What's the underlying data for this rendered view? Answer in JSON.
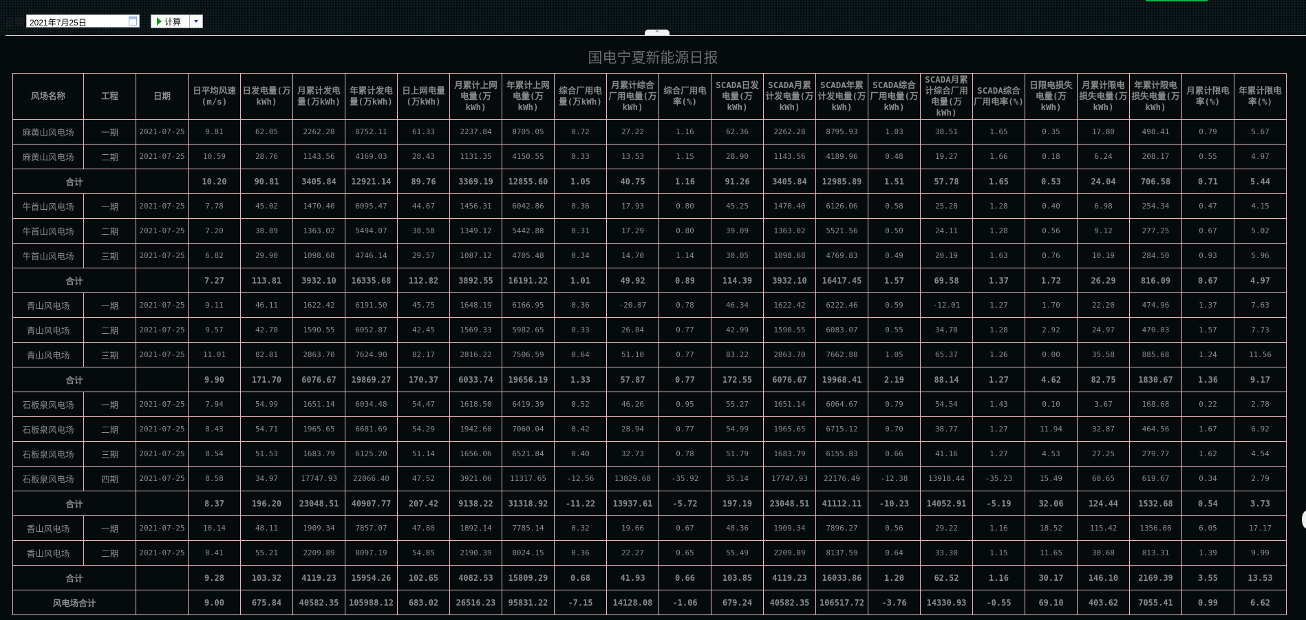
{
  "toolbar": {
    "date_label": "日期",
    "date_value": "2021年7月25日",
    "calc_label": "计算",
    "collapse_glyph": "^"
  },
  "title": "国电宁夏新能源日报",
  "colors": {
    "background": "#050b0d",
    "border": "#e4b9bb",
    "text": "#8a8a8a",
    "accent_strip": "#0fb44a"
  },
  "columns": [
    "风场名称",
    "工程",
    "日期",
    "日平均风速(m/s)",
    "日发电量(万kWh)",
    "月累计发电量(万kWh)",
    "年累计发电量(万kWh)",
    "日上网电量(万kWh)",
    "月累计上网电量(万kWh)",
    "年累计上网电量(万kWh)",
    "综合厂用电量(万kWh)",
    "月累计综合厂用电量(万kWh)",
    "综合厂用电率(%)",
    "SCADA日发电量(万kWh)",
    "SCADA月累计发电量(万kWh)",
    "SCADA年累计发电量(万kWh)",
    "SCADA综合厂用电量(万kWh)",
    "SCADA月累计综合厂用电量(万kWh)",
    "SCADA综合厂用电率(%)",
    "日限电损失电量(万kWh)",
    "月累计限电损失电量(万kWh)",
    "年累计限电损失电量(万kWh)",
    "月累计限电率(%)",
    "年累计限电率(%)"
  ],
  "rows": [
    {
      "type": "detail",
      "name": "麻黄山风电场",
      "phase": "一期",
      "date": "2021-07-25",
      "values": [
        "9.81",
        "62.05",
        "2262.28",
        "8752.11",
        "61.33",
        "2237.84",
        "8705.05",
        "0.72",
        "27.22",
        "1.16",
        "62.36",
        "2262.28",
        "8795.93",
        "1.03",
        "38.51",
        "1.65",
        "0.35",
        "17.80",
        "498.41",
        "0.79",
        "5.67"
      ]
    },
    {
      "type": "detail",
      "name": "麻黄山风电场",
      "phase": "二期",
      "date": "2021-07-25",
      "values": [
        "10.59",
        "28.76",
        "1143.56",
        "4169.03",
        "28.43",
        "1131.35",
        "4150.55",
        "0.33",
        "13.53",
        "1.15",
        "28.90",
        "1143.56",
        "4189.96",
        "0.48",
        "19.27",
        "1.66",
        "0.18",
        "6.24",
        "208.17",
        "0.55",
        "4.97"
      ]
    },
    {
      "type": "total",
      "name": "合计",
      "date": "",
      "values": [
        "10.20",
        "90.81",
        "3405.84",
        "12921.14",
        "89.76",
        "3369.19",
        "12855.60",
        "1.05",
        "40.75",
        "1.16",
        "91.26",
        "3405.84",
        "12985.89",
        "1.51",
        "57.78",
        "1.65",
        "0.53",
        "24.04",
        "706.58",
        "0.71",
        "5.44"
      ]
    },
    {
      "type": "detail",
      "name": "牛首山风电场",
      "phase": "一期",
      "date": "2021-07-25",
      "values": [
        "7.78",
        "45.02",
        "1470.40",
        "6095.47",
        "44.67",
        "1456.31",
        "6042.86",
        "0.36",
        "17.93",
        "0.80",
        "45.25",
        "1470.40",
        "6126.06",
        "0.58",
        "25.28",
        "1.28",
        "0.40",
        "6.98",
        "254.34",
        "0.47",
        "4.15"
      ]
    },
    {
      "type": "detail",
      "name": "牛首山风电场",
      "phase": "二期",
      "date": "2021-07-25",
      "values": [
        "7.20",
        "38.89",
        "1363.02",
        "5494.07",
        "38.58",
        "1349.12",
        "5442.88",
        "0.31",
        "17.29",
        "0.80",
        "39.09",
        "1363.02",
        "5521.56",
        "0.50",
        "24.11",
        "1.28",
        "0.56",
        "9.12",
        "277.25",
        "0.67",
        "5.02"
      ]
    },
    {
      "type": "detail",
      "name": "牛首山风电场",
      "phase": "三期",
      "date": "2021-07-25",
      "values": [
        "6.82",
        "29.90",
        "1098.68",
        "4746.14",
        "29.57",
        "1087.12",
        "4705.48",
        "0.34",
        "14.70",
        "1.14",
        "30.05",
        "1098.68",
        "4769.83",
        "0.49",
        "20.19",
        "1.63",
        "0.76",
        "10.19",
        "284.50",
        "0.93",
        "5.96"
      ]
    },
    {
      "type": "total",
      "name": "合计",
      "date": "",
      "values": [
        "7.27",
        "113.81",
        "3932.10",
        "16335.68",
        "112.82",
        "3892.55",
        "16191.22",
        "1.01",
        "49.92",
        "0.89",
        "114.39",
        "3932.10",
        "16417.45",
        "1.57",
        "69.58",
        "1.37",
        "1.72",
        "26.29",
        "816.09",
        "0.67",
        "4.97"
      ]
    },
    {
      "type": "detail",
      "name": "青山风电场",
      "phase": "一期",
      "date": "2021-07-25",
      "values": [
        "9.11",
        "46.11",
        "1622.42",
        "6191.50",
        "45.75",
        "1648.19",
        "6166.95",
        "0.36",
        "-20.07",
        "0.78",
        "46.34",
        "1622.42",
        "6222.46",
        "0.59",
        "-12.01",
        "1.27",
        "1.70",
        "22.20",
        "474.96",
        "1.37",
        "7.63"
      ]
    },
    {
      "type": "detail",
      "name": "青山风电场",
      "phase": "二期",
      "date": "2021-07-25",
      "values": [
        "9.57",
        "42.78",
        "1590.55",
        "6052.87",
        "42.45",
        "1569.33",
        "5982.65",
        "0.33",
        "26.84",
        "0.77",
        "42.99",
        "1590.55",
        "6083.07",
        "0.55",
        "34.78",
        "1.28",
        "2.92",
        "24.97",
        "470.03",
        "1.57",
        "7.73"
      ]
    },
    {
      "type": "detail",
      "name": "青山风电场",
      "phase": "三期",
      "date": "2021-07-25",
      "values": [
        "11.01",
        "82.81",
        "2863.70",
        "7624.90",
        "82.17",
        "2816.22",
        "7506.59",
        "0.64",
        "51.10",
        "0.77",
        "83.22",
        "2863.70",
        "7662.88",
        "1.05",
        "65.37",
        "1.26",
        "0.00",
        "35.58",
        "885.68",
        "1.24",
        "11.56"
      ]
    },
    {
      "type": "total",
      "name": "合计",
      "date": "",
      "values": [
        "9.90",
        "171.70",
        "6076.67",
        "19869.27",
        "170.37",
        "6033.74",
        "19656.19",
        "1.33",
        "57.87",
        "0.77",
        "172.55",
        "6076.67",
        "19968.41",
        "2.19",
        "88.14",
        "1.27",
        "4.62",
        "82.75",
        "1830.67",
        "1.36",
        "9.17"
      ]
    },
    {
      "type": "detail",
      "name": "石板泉风电场",
      "phase": "一期",
      "date": "2021-07-25",
      "values": [
        "7.94",
        "54.99",
        "1651.14",
        "6034.48",
        "54.47",
        "1618.50",
        "6419.39",
        "0.52",
        "46.26",
        "0.95",
        "55.27",
        "1651.14",
        "6064.67",
        "0.79",
        "54.54",
        "1.43",
        "0.10",
        "3.67",
        "168.68",
        "0.22",
        "2.78"
      ]
    },
    {
      "type": "detail",
      "name": "石板泉风电场",
      "phase": "二期",
      "date": "2021-07-25",
      "values": [
        "8.43",
        "54.71",
        "1965.65",
        "6681.69",
        "54.29",
        "1942.60",
        "7060.04",
        "0.42",
        "28.94",
        "0.77",
        "54.99",
        "1965.65",
        "6715.12",
        "0.70",
        "38.77",
        "1.27",
        "11.94",
        "32.87",
        "464.56",
        "1.67",
        "6.92"
      ]
    },
    {
      "type": "detail",
      "name": "石板泉风电场",
      "phase": "三期",
      "date": "2021-07-25",
      "values": [
        "8.54",
        "51.53",
        "1683.79",
        "6125.20",
        "51.14",
        "1656.06",
        "6521.84",
        "0.40",
        "32.73",
        "0.78",
        "51.79",
        "1683.79",
        "6155.83",
        "0.66",
        "41.16",
        "1.27",
        "4.53",
        "27.25",
        "279.77",
        "1.62",
        "4.54"
      ]
    },
    {
      "type": "detail",
      "name": "石板泉风电场",
      "phase": "四期",
      "date": "2021-07-25",
      "values": [
        "8.58",
        "34.97",
        "17747.93",
        "22066.40",
        "47.52",
        "3921.06",
        "11317.65",
        "-12.56",
        "13829.68",
        "-35.92",
        "35.14",
        "17747.93",
        "22176.49",
        "-12.38",
        "13918.44",
        "-35.23",
        "15.49",
        "60.65",
        "619.67",
        "0.34",
        "2.79"
      ]
    },
    {
      "type": "total",
      "name": "合计",
      "date": "",
      "values": [
        "8.37",
        "196.20",
        "23048.51",
        "40907.77",
        "207.42",
        "9138.22",
        "31318.92",
        "-11.22",
        "13937.61",
        "-5.72",
        "197.19",
        "23048.51",
        "41112.11",
        "-10.23",
        "14052.91",
        "-5.19",
        "32.06",
        "124.44",
        "1532.68",
        "0.54",
        "3.73"
      ]
    },
    {
      "type": "detail",
      "name": "香山风电场",
      "phase": "一期",
      "date": "2021-07-25",
      "values": [
        "10.14",
        "48.11",
        "1909.34",
        "7857.07",
        "47.80",
        "1892.14",
        "7785.14",
        "0.32",
        "19.66",
        "0.67",
        "48.36",
        "1909.34",
        "7896.27",
        "0.56",
        "29.22",
        "1.16",
        "18.52",
        "115.42",
        "1356.08",
        "6.05",
        "17.17"
      ]
    },
    {
      "type": "detail",
      "name": "香山风电场",
      "phase": "二期",
      "date": "2021-07-25",
      "values": [
        "8.41",
        "55.21",
        "2209.89",
        "8097.19",
        "54.85",
        "2190.39",
        "8024.15",
        "0.36",
        "22.27",
        "0.65",
        "55.49",
        "2209.89",
        "8137.59",
        "0.64",
        "33.30",
        "1.15",
        "11.65",
        "30.68",
        "813.31",
        "1.39",
        "9.99"
      ]
    },
    {
      "type": "total",
      "name": "合计",
      "date": "",
      "values": [
        "9.28",
        "103.32",
        "4119.23",
        "15954.26",
        "102.65",
        "4082.53",
        "15809.29",
        "0.68",
        "41.93",
        "0.66",
        "103.85",
        "4119.23",
        "16033.86",
        "1.20",
        "62.52",
        "1.16",
        "30.17",
        "146.10",
        "2169.39",
        "3.55",
        "13.53"
      ]
    },
    {
      "type": "total",
      "name": "风电场合计",
      "date": "",
      "values": [
        "9.00",
        "675.84",
        "40582.35",
        "105988.12",
        "683.02",
        "26516.23",
        "95831.22",
        "-7.15",
        "14128.08",
        "-1.06",
        "679.24",
        "40582.35",
        "106517.72",
        "-3.76",
        "14330.93",
        "-0.55",
        "69.10",
        "403.62",
        "7055.41",
        "0.99",
        "6.62"
      ]
    }
  ]
}
